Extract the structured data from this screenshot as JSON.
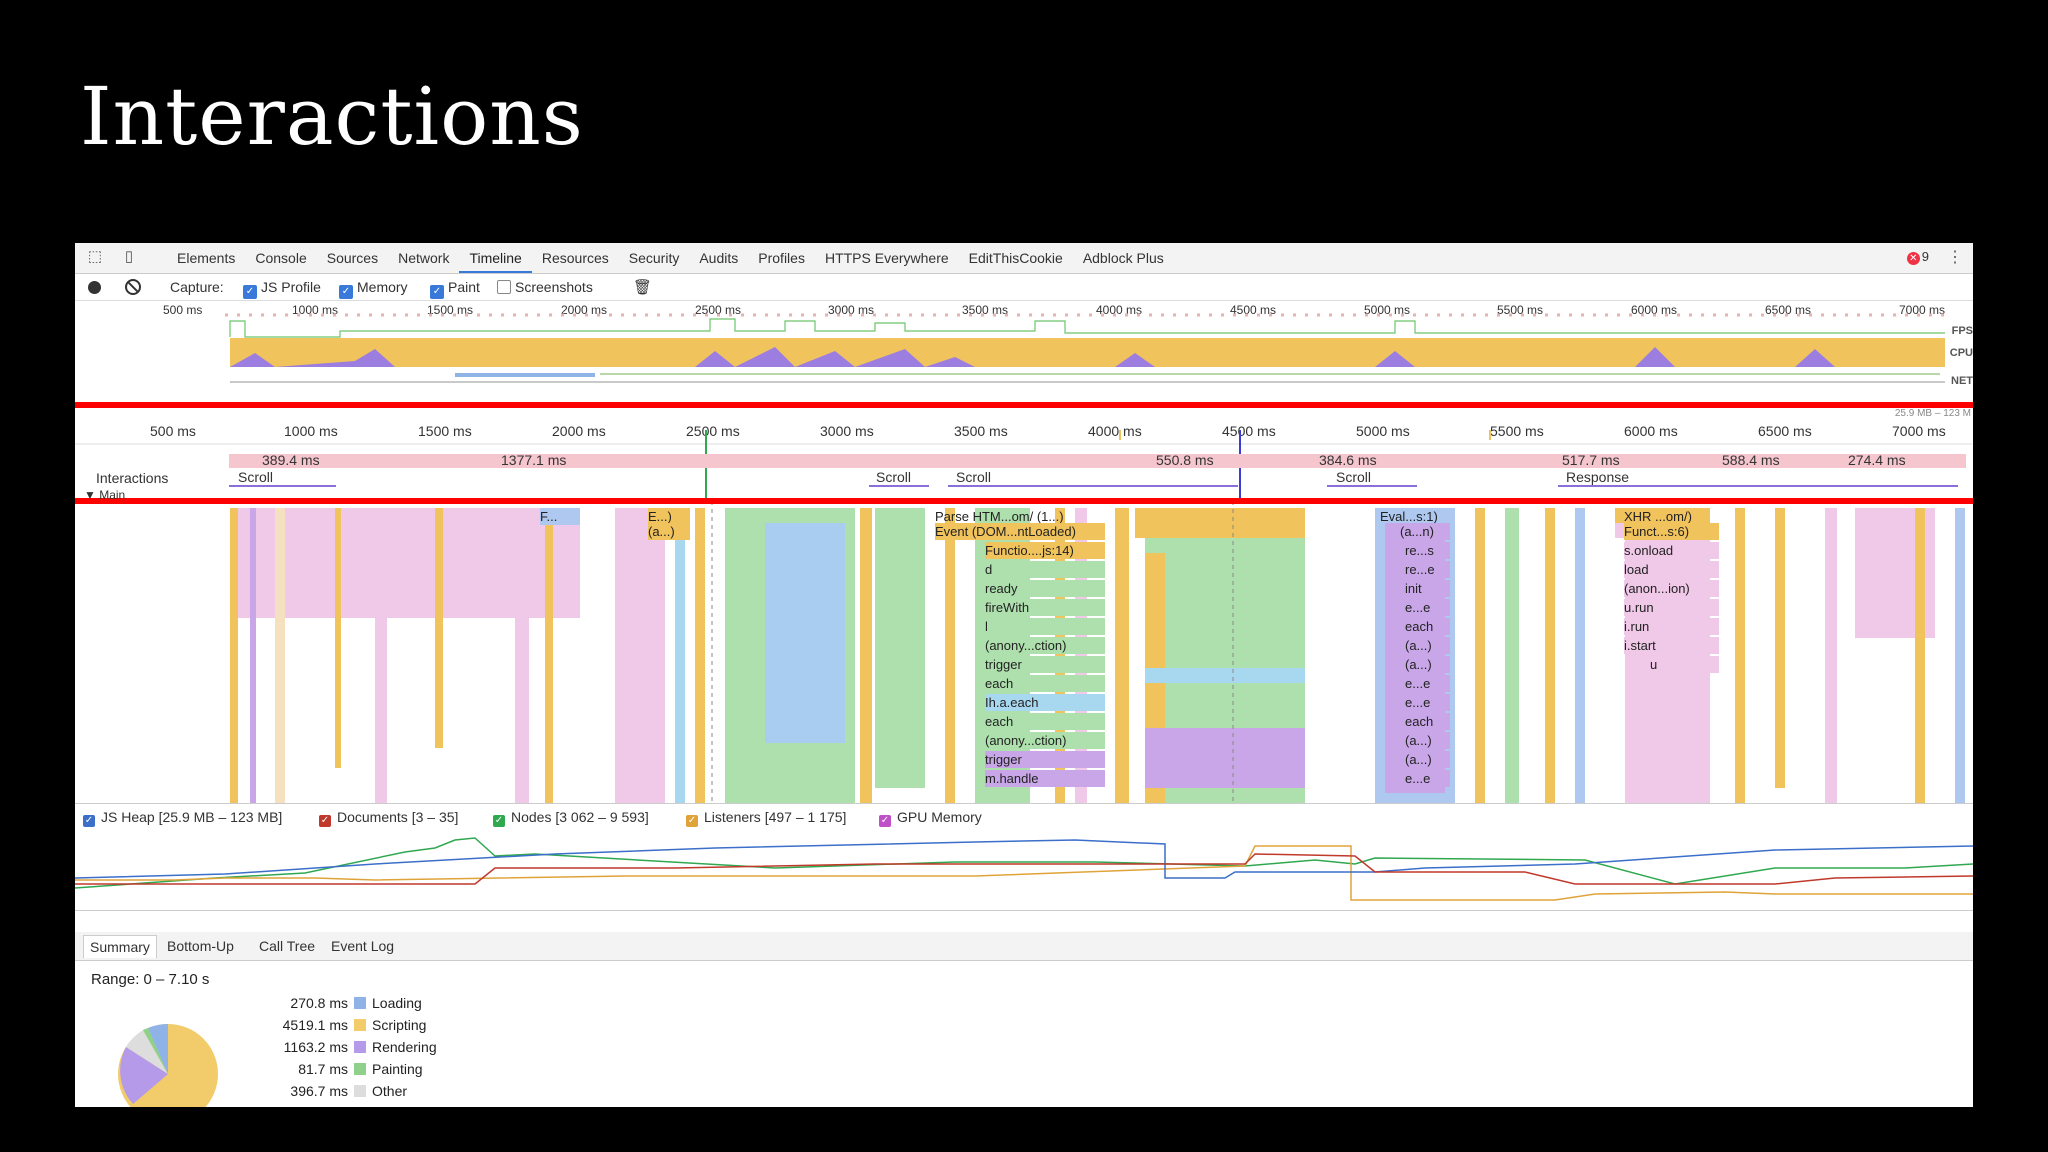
{
  "slide": {
    "title": "Interactions"
  },
  "devtools": {
    "tabs": [
      "Elements",
      "Console",
      "Sources",
      "Network",
      "Timeline",
      "Resources",
      "Security",
      "Audits",
      "Profiles",
      "HTTPS Everywhere",
      "EditThisCookie",
      "Adblock Plus"
    ],
    "active_tab": "Timeline",
    "error_count": "9",
    "capture": {
      "label": "Capture:",
      "js_profile": "JS Profile",
      "memory": "Memory",
      "paint": "Paint",
      "screenshots": "Screenshots"
    },
    "overview": {
      "ruler": [
        "500 ms",
        "1000 ms",
        "1500 ms",
        "2000 ms",
        "2500 ms",
        "3000 ms",
        "3500 ms",
        "4000 ms",
        "4500 ms",
        "5000 ms",
        "5500 ms",
        "6000 ms",
        "6500 ms",
        "7000 ms"
      ],
      "lanes": [
        "FPS",
        "CPU",
        "NET"
      ]
    },
    "highlight": {
      "ruler": [
        "500 ms",
        "1000 ms",
        "1500 ms",
        "2000 ms",
        "2500 ms",
        "3000 ms",
        "3500 ms",
        "4000 ms",
        "4500 ms",
        "5000 ms",
        "5500 ms",
        "6000 ms",
        "6500 ms",
        "7000 ms"
      ],
      "durations": [
        "389.4 ms",
        "1377.1 ms",
        "550.8 ms",
        "384.6 ms",
        "517.7 ms",
        "588.4 ms",
        "274.4 ms"
      ],
      "interactions_label": "Interactions",
      "interactions": [
        "Scroll",
        "Scroll",
        "Scroll",
        "Scroll",
        "Response"
      ],
      "memory_note": "25.9 MB – 123 M",
      "main_label": "▼ Main"
    },
    "flame": {
      "col1": [
        "Parse HTM...om/ (1...)",
        "Event (DOM...ntLoaded)",
        "Functio....js:14)",
        "d",
        "ready",
        "fireWith",
        "l",
        "(anony...ction)",
        "trigger",
        "each",
        "Ih.a.each",
        "each",
        "(anony...ction)",
        "trigger",
        "m.handle"
      ],
      "col2": [
        "Eval...s:1)",
        "(a...n)",
        "re...s",
        "re...e",
        "init",
        "e...e",
        "each",
        "(a...)",
        "(a...)",
        "e...e",
        "e...e",
        "each",
        "(a...)",
        "(a...)",
        "e...e"
      ],
      "col3": [
        "XHR ...om/)",
        "Funct...s:6)",
        "s.onload",
        "load",
        "(anon...ion)",
        "u.run",
        "i.run",
        "i.start",
        "u"
      ],
      "small": [
        "F...",
        "E...)",
        "(a...)"
      ]
    },
    "counters": [
      {
        "label": "JS Heap [25.9 MB – 123 MB]",
        "color": "#3b6fc9"
      },
      {
        "label": "Documents [3 – 35]",
        "color": "#c0392b"
      },
      {
        "label": "Nodes [3 062 – 9 593]",
        "color": "#2fa84f"
      },
      {
        "label": "Listeners [497 – 1 175]",
        "color": "#e0a33a"
      },
      {
        "label": "GPU Memory",
        "color": "#c050c8"
      }
    ],
    "bottom_tabs": [
      "Summary",
      "Bottom-Up",
      "Call Tree",
      "Event Log"
    ],
    "summary": {
      "range": "Range: 0 – 7.10 s",
      "items": [
        {
          "ms": "270.8 ms",
          "label": "Loading",
          "color": "#8fb3e6"
        },
        {
          "ms": "4519.1 ms",
          "label": "Scripting",
          "color": "#f2cb6b"
        },
        {
          "ms": "1163.2 ms",
          "label": "Rendering",
          "color": "#b49ae8"
        },
        {
          "ms": "81.7 ms",
          "label": "Painting",
          "color": "#8fd18a"
        },
        {
          "ms": "396.7 ms",
          "label": "Other",
          "color": "#dddddd"
        }
      ]
    }
  }
}
